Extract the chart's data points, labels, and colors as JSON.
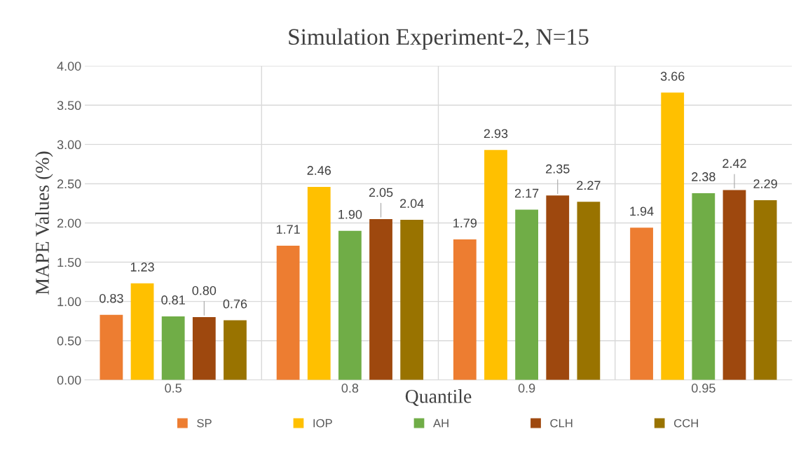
{
  "chart_data": {
    "type": "bar",
    "title": "Simulation Experiment-2, N=15",
    "xlabel": "Quantile",
    "ylabel": "MAPE Values (%)",
    "categories": [
      "0.5",
      "0.8",
      "0.9",
      "0.95"
    ],
    "series": [
      {
        "name": "SP",
        "color": "#ed7d31",
        "values": [
          0.83,
          1.71,
          1.79,
          1.94
        ],
        "value_labels": [
          "0.83",
          "1.71",
          "1.79",
          "1.94"
        ]
      },
      {
        "name": "IOP",
        "color": "#ffc000",
        "values": [
          1.23,
          2.46,
          2.93,
          3.66
        ],
        "value_labels": [
          "1.23",
          "2.46",
          "2.93",
          "3.66"
        ]
      },
      {
        "name": "AH",
        "color": "#70ad47",
        "values": [
          0.81,
          1.9,
          2.17,
          2.38
        ],
        "value_labels": [
          "0.81",
          "1.90",
          "2.17",
          "2.38"
        ]
      },
      {
        "name": "CLH",
        "color": "#9e480e",
        "values": [
          0.8,
          2.05,
          2.35,
          2.42
        ],
        "value_labels": [
          "0.80",
          "2.05",
          "2.35",
          "2.42"
        ]
      },
      {
        "name": "CCH",
        "color": "#997300",
        "values": [
          0.76,
          2.04,
          2.27,
          2.29
        ],
        "value_labels": [
          "0.76",
          "2.04",
          "2.27",
          "2.29"
        ]
      }
    ],
    "ylim": [
      0,
      4
    ],
    "yticks": [
      {
        "value": 0,
        "label": "0.00"
      },
      {
        "value": 0.5,
        "label": "0.50"
      },
      {
        "value": 1,
        "label": "1.00"
      },
      {
        "value": 1.5,
        "label": "1.50"
      },
      {
        "value": 2,
        "label": "2.00"
      },
      {
        "value": 2.5,
        "label": "2.50"
      },
      {
        "value": 3,
        "label": "3.00"
      },
      {
        "value": 3.5,
        "label": "3.50"
      },
      {
        "value": 4,
        "label": "4.00"
      }
    ],
    "grid": true,
    "legend": "bottom"
  }
}
